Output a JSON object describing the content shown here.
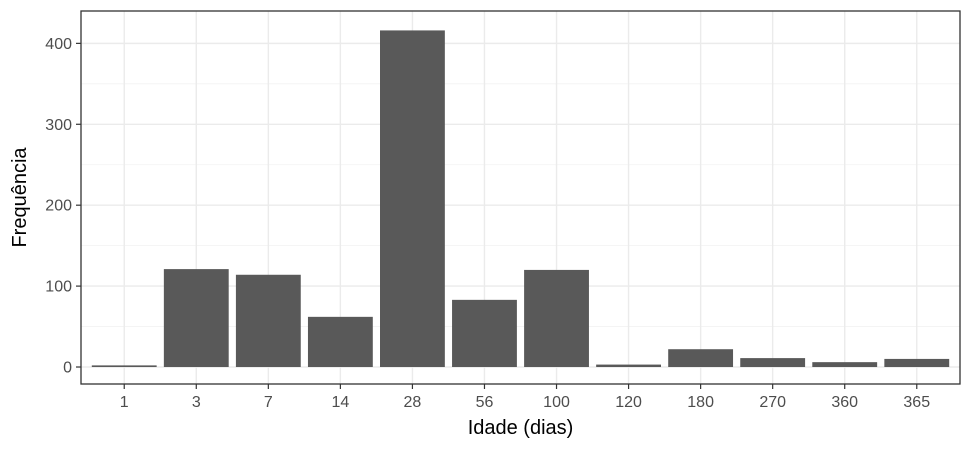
{
  "chart_data": {
    "type": "bar",
    "title": "",
    "xlabel": "Idade (dias)",
    "ylabel": "Frequência",
    "categories": [
      "1",
      "3",
      "7",
      "14",
      "28",
      "56",
      "100",
      "120",
      "180",
      "270",
      "360",
      "365"
    ],
    "values": [
      2,
      121,
      114,
      62,
      416,
      83,
      120,
      3,
      22,
      11,
      6,
      10
    ],
    "ylim": [
      -21,
      440
    ],
    "yticks": [
      0,
      100,
      200,
      300,
      400
    ],
    "ytick_labels": [
      "0",
      "100",
      "200",
      "300",
      "400"
    ],
    "grid": true,
    "legend": "none",
    "bar_color": "#595959",
    "theme": "bw"
  }
}
